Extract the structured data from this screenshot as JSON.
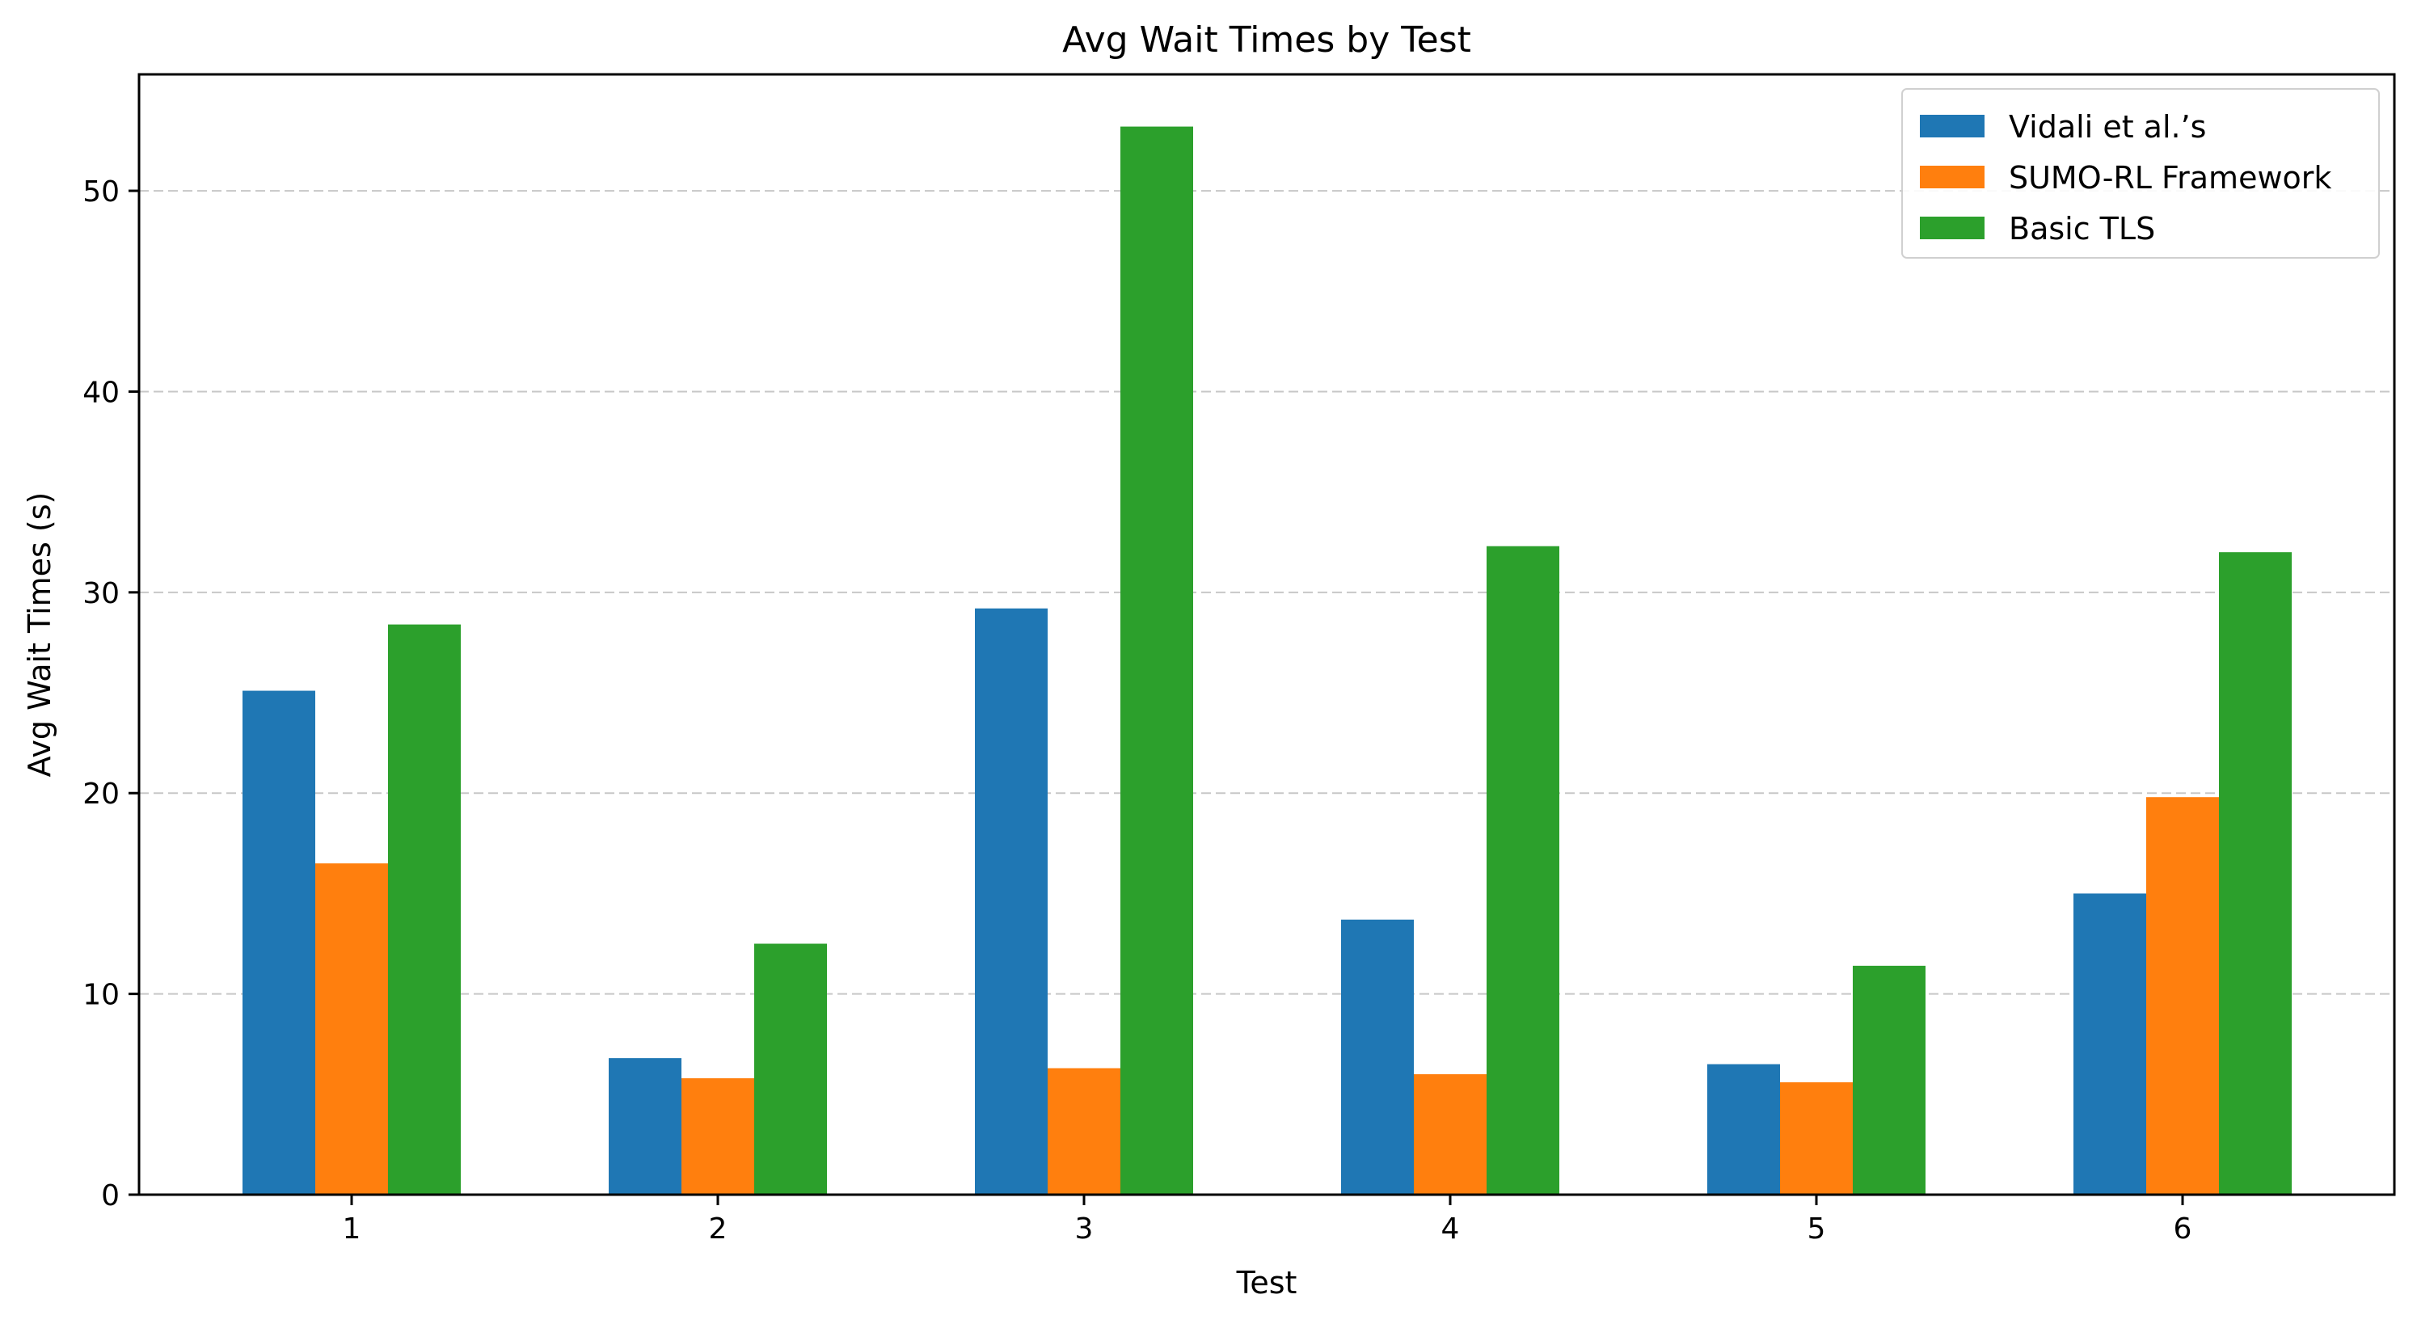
{
  "chart_data": {
    "type": "bar",
    "title": "Avg Wait Times by Test",
    "xlabel": "Test",
    "ylabel": "Avg Wait Times (s)",
    "categories": [
      "1",
      "2",
      "3",
      "4",
      "5",
      "6"
    ],
    "series": [
      {
        "name": "Vidali et al.’s",
        "color": "#1f77b4",
        "values": [
          25.1,
          6.8,
          29.2,
          13.7,
          6.5,
          15.0
        ]
      },
      {
        "name": "SUMO-RL Framework",
        "color": "#ff7f0e",
        "values": [
          16.5,
          5.8,
          6.3,
          6.0,
          5.6,
          19.8
        ]
      },
      {
        "name": "Basic TLS",
        "color": "#2ca02c",
        "values": [
          28.4,
          12.5,
          53.2,
          32.3,
          11.4,
          32.0
        ]
      }
    ],
    "ylim": [
      0,
      55.8
    ],
    "yticks": [
      0,
      10,
      20,
      30,
      40,
      50
    ],
    "grid": "y dashed",
    "legend_position": "top-right"
  }
}
